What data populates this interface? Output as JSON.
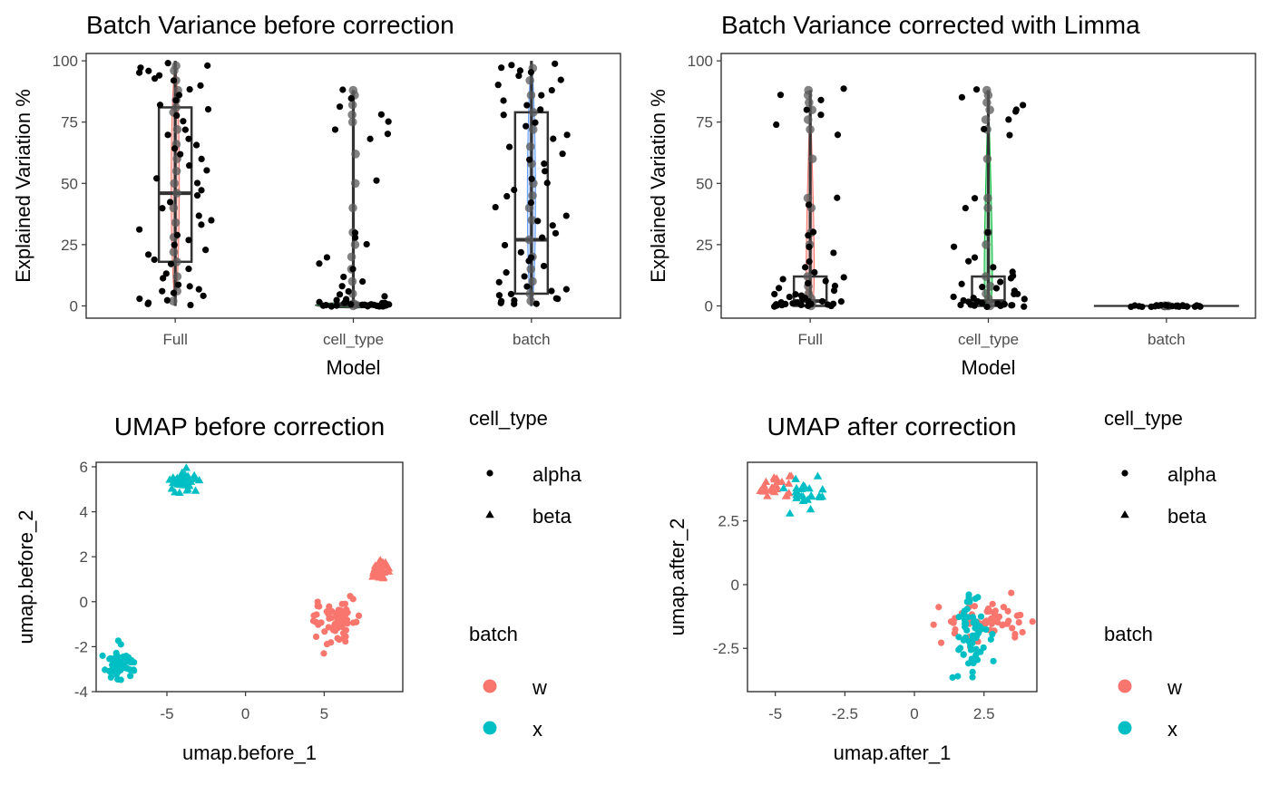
{
  "colors": {
    "batch_w": "#F8766D",
    "batch_x": "#00BFC4",
    "jitter_point": "#000000",
    "box_point": "#5a5a5a",
    "box_stroke": "#333333",
    "panel_border": "#333333",
    "violin_full": "#F8766D",
    "violin_cell_type": "#00BA38",
    "violin_batch": "#619CFF"
  },
  "legend": {
    "shape_title": "cell_type",
    "shape_items": [
      {
        "label": "alpha",
        "shape": "circle"
      },
      {
        "label": "beta",
        "shape": "triangle"
      }
    ],
    "color_title": "batch",
    "color_items": [
      {
        "label": "w",
        "color": "#F8766D"
      },
      {
        "label": "x",
        "color": "#00BFC4"
      }
    ]
  },
  "chart_data": [
    {
      "type": "box",
      "title": "Batch Variance before correction",
      "xlabel": "Model",
      "ylabel": "Explained Variation %",
      "categories": [
        "Full",
        "cell_type",
        "batch"
      ],
      "ylim": [
        -5,
        103
      ],
      "yticks": [
        0,
        25,
        50,
        75,
        100
      ],
      "grid": false,
      "boxes": [
        {
          "category": "Full",
          "lower_whisker": 0,
          "q1": 18,
          "median": 46,
          "q3": 81,
          "upper_whisker": 100
        },
        {
          "category": "cell_type",
          "lower_whisker": 0,
          "q1": 0,
          "median": 0.5,
          "q3": 1,
          "upper_whisker": 88
        },
        {
          "category": "batch",
          "lower_whisker": 0,
          "q1": 5,
          "median": 27,
          "q3": 79,
          "upper_whisker": 100
        }
      ],
      "jitter_points": [
        {
          "category": "Full",
          "values": [
            99,
            98,
            97,
            96,
            95,
            94,
            93,
            92,
            90,
            88,
            86,
            84,
            82,
            80,
            78,
            75,
            72,
            70,
            68,
            66,
            64,
            62,
            60,
            57,
            55,
            52,
            50,
            47,
            45,
            42,
            40,
            37,
            35,
            33,
            31,
            29,
            27,
            25,
            23,
            21,
            19,
            17,
            15,
            13,
            11,
            9,
            8,
            7,
            6,
            5,
            4,
            3,
            2,
            1,
            1,
            0.5
          ]
        },
        {
          "category": "cell_type",
          "values": [
            88,
            85,
            81,
            78,
            75,
            72,
            70,
            68,
            51,
            30,
            28,
            25,
            20,
            17,
            15,
            12,
            10,
            8,
            6,
            5,
            4,
            3,
            2,
            2,
            1.5,
            1.5,
            1,
            1,
            1,
            0.8,
            0.8,
            0.6,
            0.5,
            0.5,
            0.4,
            0.3,
            0.3,
            0.2,
            0.2,
            0.1,
            0.1,
            0,
            0,
            0,
            0,
            0
          ]
        },
        {
          "category": "batch",
          "values": [
            99,
            98,
            97,
            96,
            95,
            94,
            92,
            90,
            88,
            86,
            84,
            82,
            80,
            78,
            75,
            73,
            70,
            68,
            65,
            62,
            60,
            58,
            55,
            52,
            50,
            47,
            45,
            42,
            40,
            37,
            35,
            33,
            30,
            28,
            25,
            22,
            20,
            18,
            16,
            14,
            12,
            10,
            8,
            7,
            6,
            5,
            4,
            3,
            3,
            2,
            2,
            1,
            1,
            0.5
          ]
        }
      ],
      "box_points": [
        {
          "category": "Full",
          "values": [
            98,
            96,
            92,
            88,
            84,
            81,
            79,
            72,
            66,
            60,
            55,
            50,
            46,
            40,
            34,
            28,
            22,
            18,
            12,
            6,
            2
          ]
        },
        {
          "category": "cell_type",
          "values": [
            88,
            86,
            82,
            78,
            75,
            62,
            50,
            40,
            30,
            25,
            20,
            15,
            10,
            5,
            1,
            0.5,
            0
          ]
        },
        {
          "category": "batch",
          "values": [
            97,
            92,
            86,
            79,
            72,
            65,
            58,
            50,
            45,
            40,
            35,
            27,
            20,
            15,
            10,
            5,
            2
          ]
        }
      ]
    },
    {
      "type": "box",
      "title": "Batch Variance corrected with Limma",
      "xlabel": "Model",
      "ylabel": "Explained Variation %",
      "categories": [
        "Full",
        "cell_type",
        "batch"
      ],
      "ylim": [
        -5,
        103
      ],
      "yticks": [
        0,
        25,
        50,
        75,
        100
      ],
      "grid": false,
      "boxes": [
        {
          "category": "Full",
          "lower_whisker": 0,
          "q1": 0,
          "median": 2,
          "q3": 12,
          "upper_whisker": 88
        },
        {
          "category": "cell_type",
          "lower_whisker": 0,
          "q1": 0,
          "median": 2,
          "q3": 12,
          "upper_whisker": 88
        },
        {
          "category": "batch",
          "lower_whisker": 0,
          "q1": 0,
          "median": 0,
          "q3": 0,
          "upper_whisker": 0
        }
      ],
      "jitter_points": [
        {
          "category": "Full",
          "values": [
            88.5,
            86,
            84,
            80,
            78,
            74,
            70,
            44,
            41,
            30,
            29,
            24,
            22,
            18,
            16,
            14,
            12,
            11,
            10,
            9,
            8,
            7,
            6,
            5,
            5,
            4,
            4,
            3,
            3,
            2,
            2,
            2,
            1.5,
            1.5,
            1,
            1,
            1,
            0.8,
            0.6,
            0.5,
            0.4,
            0.3,
            0.2,
            0.1,
            0,
            0,
            0,
            0
          ]
        },
        {
          "category": "cell_type",
          "values": [
            88,
            85,
            82,
            80,
            79,
            76,
            72,
            70,
            44,
            40,
            30,
            24,
            20,
            18,
            16,
            14,
            12,
            11,
            10,
            9,
            8,
            7,
            6,
            5,
            5,
            4,
            3,
            3,
            2,
            2,
            2,
            1.5,
            1,
            1,
            1,
            0.8,
            0.6,
            0.5,
            0.3,
            0.2,
            0.1,
            0,
            0,
            0,
            0
          ]
        },
        {
          "category": "batch",
          "values": [
            0,
            0,
            0,
            0,
            0,
            0,
            0,
            0,
            0,
            0,
            0,
            0,
            0,
            0,
            0,
            0,
            0,
            0,
            0,
            0,
            0,
            0,
            0,
            0
          ]
        }
      ],
      "box_points": [
        {
          "category": "Full",
          "values": [
            88,
            86,
            83,
            80,
            76,
            72,
            60,
            44,
            40,
            30,
            25,
            12,
            8,
            5,
            3,
            1,
            0
          ]
        },
        {
          "category": "cell_type",
          "values": [
            88,
            86,
            83,
            80,
            76,
            72,
            60,
            44,
            40,
            30,
            25,
            12,
            8,
            5,
            3,
            1,
            0
          ]
        },
        {
          "category": "batch",
          "values": [
            0,
            0,
            0,
            0,
            0,
            0
          ]
        }
      ]
    },
    {
      "type": "scatter",
      "title": "UMAP before correction",
      "xlabel": "umap.before_1",
      "ylabel": "umap.before_2",
      "xlim": [
        -9.5,
        10
      ],
      "ylim": [
        -4,
        6.2
      ],
      "xticks": [
        -5,
        0,
        5
      ],
      "yticks": [
        -4,
        -2,
        0,
        2,
        4,
        6
      ],
      "grid": false,
      "clusters": [
        {
          "batch": "x",
          "shape": "triangle",
          "center": [
            -4.0,
            5.35
          ],
          "spread": [
            0.4,
            0.2
          ],
          "n": 35
        },
        {
          "batch": "x",
          "shape": "circle",
          "center": [
            -8.0,
            -2.8
          ],
          "spread": [
            0.45,
            0.28
          ],
          "n": 60
        },
        {
          "batch": "w",
          "shape": "circle",
          "center": [
            5.6,
            -0.8
          ],
          "spread": [
            0.6,
            0.45
          ],
          "n": 65
        },
        {
          "batch": "w",
          "shape": "triangle",
          "center": [
            8.6,
            1.35
          ],
          "spread": [
            0.28,
            0.22
          ],
          "n": 35
        }
      ]
    },
    {
      "type": "scatter",
      "title": "UMAP after correction",
      "xlabel": "umap.after_1",
      "ylabel": "umap.after_2",
      "xlim": [
        -6,
        4.4
      ],
      "ylim": [
        -4.2,
        4.8
      ],
      "xticks": [
        -5.0,
        -2.5,
        0.0,
        2.5
      ],
      "yticks": [
        -2.5,
        0.0,
        2.5
      ],
      "grid": false,
      "clusters": [
        {
          "batch": "w",
          "shape": "triangle",
          "center": [
            -5.0,
            3.9
          ],
          "spread": [
            0.35,
            0.28
          ],
          "n": 25
        },
        {
          "batch": "x",
          "shape": "triangle",
          "center": [
            -4.0,
            3.5
          ],
          "spread": [
            0.45,
            0.25
          ],
          "n": 25
        },
        {
          "batch": "w",
          "shape": "circle",
          "center": [
            2.5,
            -1.4
          ],
          "spread": [
            0.85,
            0.35
          ],
          "n": 60
        },
        {
          "batch": "x",
          "shape": "circle",
          "center": [
            2.0,
            -2.0
          ],
          "spread": [
            0.3,
            0.9
          ],
          "n": 60
        }
      ]
    }
  ]
}
